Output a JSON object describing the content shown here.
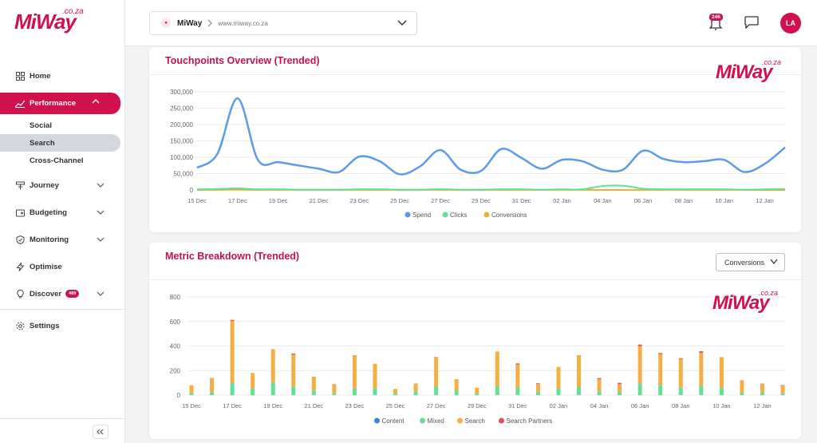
{
  "brand": {
    "name": "MiWay",
    "domain": ".co.za"
  },
  "sidebar": {
    "items": [
      {
        "label": "Home",
        "icon": "grid-icon"
      },
      {
        "label": "Performance",
        "icon": "trend-icon",
        "active": true
      },
      {
        "label": "Journey",
        "icon": "journey-icon"
      },
      {
        "label": "Budgeting",
        "icon": "budget-icon"
      },
      {
        "label": "Monitoring",
        "icon": "shield-icon"
      },
      {
        "label": "Optimise",
        "icon": "bolt-icon"
      },
      {
        "label": "Discover",
        "icon": "bulb-icon",
        "badge": "469"
      },
      {
        "label": "Settings",
        "icon": "gear-icon"
      }
    ],
    "sub_items": [
      "Social",
      "Search",
      "Cross-Channel"
    ]
  },
  "topbar": {
    "account_name": "MiWay",
    "account_url": "www.miway.co.za",
    "notifications": "246",
    "avatar": "LA"
  },
  "card1": {
    "title": "Touchpoints Overview (Trended)"
  },
  "card2": {
    "title": "Metric Breakdown (Trended)",
    "dropdown": "Conversions"
  },
  "chart_data": [
    {
      "type": "line",
      "title": "Touchpoints Overview (Trended)",
      "ylim": [
        0,
        300000
      ],
      "yticks": [
        "300,000",
        "250,000",
        "200,000",
        "150,000",
        "100,000",
        "50,000",
        "0"
      ],
      "xticks": [
        "15 Dec",
        "17 Dec",
        "19 Dec",
        "21 Dec",
        "23 Dec",
        "25 Dec",
        "27 Dec",
        "29 Dec",
        "31 Dec",
        "02 Jan",
        "04 Jan",
        "06 Jan",
        "08 Jan",
        "10 Jan",
        "12 Jan"
      ],
      "legend": "bottom",
      "series": [
        {
          "name": "Spend",
          "color": "#5b9bea",
          "values": [
            68000,
            110000,
            280000,
            92000,
            85000,
            75000,
            65000,
            55000,
            102000,
            88000,
            48000,
            72000,
            122000,
            62000,
            58000,
            125000,
            98000,
            65000,
            92000,
            88000,
            62000,
            62000,
            120000,
            95000,
            85000,
            88000,
            92000,
            55000,
            80000,
            130000
          ]
        },
        {
          "name": "Clicks",
          "color": "#66dd99",
          "values": [
            2000,
            3000,
            5000,
            2000,
            2000,
            1000,
            1000,
            1000,
            2000,
            2000,
            1000,
            1000,
            2000,
            1000,
            1000,
            2000,
            2000,
            1000,
            2000,
            2000,
            12000,
            13000,
            4000,
            2000,
            2000,
            2000,
            2000,
            1000,
            2000,
            3000
          ]
        },
        {
          "name": "Conversions",
          "color": "#e8b22e",
          "values": [
            300,
            400,
            600,
            400,
            300,
            200,
            200,
            150,
            300,
            250,
            150,
            200,
            300,
            150,
            100,
            350,
            250,
            150,
            250,
            230,
            130,
            100,
            400,
            300,
            280,
            330,
            300,
            110,
            80,
            80
          ]
        }
      ]
    },
    {
      "type": "bar",
      "title": "Metric Breakdown (Trended)",
      "stacked": true,
      "ylim": [
        0,
        800
      ],
      "yticks": [
        "800",
        "600",
        "400",
        "200",
        "0"
      ],
      "xticks": [
        "15 Dec",
        "17 Dec",
        "19 Dec",
        "21 Dec",
        "23 Dec",
        "25 Dec",
        "27 Dec",
        "29 Dec",
        "31 Dec",
        "02 Jan",
        "04 Jan",
        "06 Jan",
        "08 Jan",
        "10 Jan",
        "12 Jan"
      ],
      "legend": "bottom",
      "series": [
        {
          "name": "Content",
          "color": "#3b82e6",
          "values": [
            0,
            0,
            0,
            0,
            0,
            0,
            0,
            0,
            0,
            0,
            0,
            0,
            0,
            0,
            0,
            0,
            0,
            0,
            0,
            0,
            0,
            0,
            0,
            0,
            0,
            0,
            0,
            0,
            0,
            0
          ]
        },
        {
          "name": "Mixed",
          "color": "#66dd99",
          "values": [
            15,
            25,
            100,
            55,
            105,
            70,
            35,
            15,
            60,
            55,
            10,
            30,
            70,
            35,
            15,
            70,
            65,
            25,
            55,
            65,
            30,
            25,
            95,
            80,
            60,
            75,
            60,
            20,
            20,
            15
          ]
        },
        {
          "name": "Search",
          "color": "#f5ae43",
          "values": [
            65,
            115,
            505,
            125,
            270,
            260,
            115,
            75,
            265,
            200,
            40,
            65,
            235,
            95,
            45,
            285,
            185,
            65,
            175,
            260,
            100,
            65,
            305,
            255,
            235,
            270,
            250,
            95,
            70,
            65
          ]
        },
        {
          "name": "Search Partners",
          "color": "#e84c5b",
          "values": [
            0,
            0,
            8,
            0,
            0,
            8,
            0,
            0,
            0,
            0,
            0,
            0,
            4,
            0,
            0,
            0,
            8,
            6,
            0,
            0,
            8,
            10,
            12,
            8,
            6,
            12,
            0,
            4,
            3,
            2
          ]
        }
      ]
    }
  ]
}
